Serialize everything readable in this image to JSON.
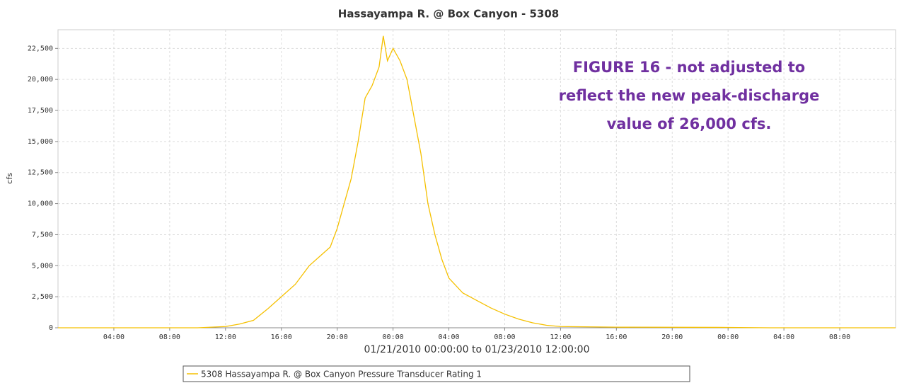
{
  "chart_data": {
    "type": "line",
    "title": "Hassayampa R. @ Box Canyon - 5308",
    "y_label": "cfs",
    "x_label": "01/21/2010 00:00:00 to 01/23/2010 12:00:00",
    "annotation": [
      "FIGURE 16 - not adjusted to",
      "reflect the new peak-discharge",
      "value of 26,000 cfs."
    ],
    "x": [
      0,
      10,
      12,
      13,
      14,
      15,
      16,
      17,
      18,
      19,
      19.5,
      20,
      21,
      21.5,
      22,
      22.5,
      23,
      23.3,
      23.6,
      24,
      24.5,
      25,
      25.5,
      26,
      26.5,
      27,
      27.5,
      28,
      29,
      30,
      31,
      32,
      33,
      34,
      35,
      36,
      40,
      48,
      51,
      60
    ],
    "series": [
      {
        "name": "5308 Hassayampa R. @ Box Canyon Pressure Transducer Rating 1",
        "color": "#f5c000",
        "values": [
          0,
          0,
          100,
          300,
          600,
          1500,
          2500,
          3500,
          5000,
          6000,
          6500,
          8000,
          12000,
          15000,
          18500,
          19500,
          21000,
          23500,
          21500,
          22500,
          21500,
          20000,
          17000,
          14000,
          10000,
          7500,
          5500,
          4000,
          2800,
          2200,
          1600,
          1100,
          700,
          400,
          200,
          100,
          50,
          30,
          0,
          0
        ]
      }
    ],
    "xlim": [
      0,
      60
    ],
    "xticks": [
      {
        "value": 4,
        "label": "04:00"
      },
      {
        "value": 8,
        "label": "08:00"
      },
      {
        "value": 12,
        "label": "12:00"
      },
      {
        "value": 16,
        "label": "16:00"
      },
      {
        "value": 20,
        "label": "20:00"
      },
      {
        "value": 24,
        "label": "00:00"
      },
      {
        "value": 28,
        "label": "04:00"
      },
      {
        "value": 32,
        "label": "08:00"
      },
      {
        "value": 36,
        "label": "12:00"
      },
      {
        "value": 40,
        "label": "16:00"
      },
      {
        "value": 44,
        "label": "20:00"
      },
      {
        "value": 48,
        "label": "00:00"
      },
      {
        "value": 52,
        "label": "04:00"
      },
      {
        "value": 56,
        "label": "08:00"
      }
    ],
    "ylim": [
      0,
      24000
    ],
    "yticks": [
      0,
      {
        "value": 2500,
        "label": "2,500"
      },
      {
        "value": 5000,
        "label": "5,000"
      },
      {
        "value": 7500,
        "label": "7,500"
      },
      {
        "value": 10000,
        "label": "10,000"
      },
      {
        "value": 12500,
        "label": "12,500"
      },
      {
        "value": 15000,
        "label": "15,000"
      },
      {
        "value": 17500,
        "label": "17,500"
      },
      {
        "value": 20000,
        "label": "20,000"
      },
      {
        "value": 22500,
        "label": "22,500"
      }
    ],
    "grid": true
  }
}
